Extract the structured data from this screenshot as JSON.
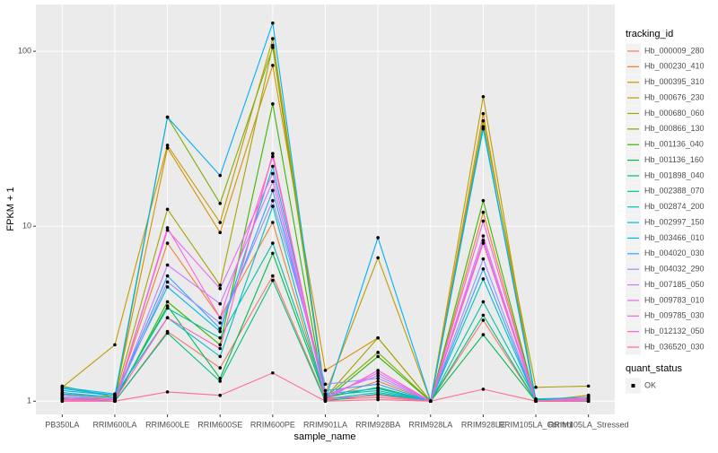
{
  "chart_data": {
    "type": "line",
    "x_label": "sample_name",
    "y_label": "FPKM + 1",
    "log_y": true,
    "grid": true,
    "legend_position": "right",
    "legend_title": "tracking_id",
    "categories": [
      "PB350LA",
      "RRIM600LA",
      "RRIM600LE",
      "RRIM600SE",
      "RRIM600PE",
      "RRIM901LA",
      "RRIM928BA",
      "RRIM928LA",
      "RRIM928LE",
      "RRIM105LA_Control",
      "RRIM105LA_Stressed"
    ],
    "ylim": [
      0.84,
      185
    ],
    "yticks": [
      1,
      10,
      100
    ],
    "point_color": "#000000",
    "status_legend": {
      "title": "quant_status",
      "labels": [
        "OK"
      ]
    },
    "series": [
      {
        "name": "Hb_000009_280",
        "color": "#F8766D",
        "values": [
          1.02,
          1.0,
          2.5,
          1.55,
          5.2,
          1.02,
          1.05,
          1.0,
          2.9,
          1.0,
          1.0
        ]
      },
      {
        "name": "Hb_000230_410",
        "color": "#EA8331",
        "values": [
          1.05,
          1.02,
          8.0,
          3.0,
          10.5,
          1.03,
          1.3,
          1.0,
          12,
          1.0,
          1.08
        ]
      },
      {
        "name": "Hb_000395_310",
        "color": "#D89000",
        "values": [
          1.1,
          1.05,
          28,
          9.2,
          83,
          1.5,
          2.3,
          1.0,
          44,
          1.0,
          1.05
        ]
      },
      {
        "name": "Hb_000676_230",
        "color": "#C09B00",
        "values": [
          1.2,
          2.1,
          29,
          10.5,
          118,
          1.1,
          6.6,
          1.0,
          55,
          1.0,
          1.08
        ]
      },
      {
        "name": "Hb_000680_060",
        "color": "#A3A500",
        "values": [
          1.22,
          1.05,
          12.5,
          4.6,
          108,
          1.05,
          2.3,
          1.0,
          40,
          1.2,
          1.22
        ]
      },
      {
        "name": "Hb_000866_130",
        "color": "#7CAE00",
        "values": [
          1.08,
          1.03,
          42,
          13.5,
          105,
          1.05,
          1.9,
          1.0,
          37,
          1.02,
          1.02
        ]
      },
      {
        "name": "Hb_001136_040",
        "color": "#39B600",
        "values": [
          1.03,
          1.0,
          3.7,
          2.1,
          50,
          1.02,
          1.8,
          1.0,
          14,
          1.0,
          1.03
        ]
      },
      {
        "name": "Hb_001136_160",
        "color": "#00BB4E",
        "values": [
          1.05,
          1.02,
          3.5,
          1.35,
          7.0,
          1.05,
          1.2,
          1.0,
          2.4,
          1.0,
          1.0
        ]
      },
      {
        "name": "Hb_001898_040",
        "color": "#00BF7D",
        "values": [
          1.03,
          1.0,
          2.45,
          1.3,
          4.9,
          1.0,
          1.1,
          1.0,
          3.1,
          1.0,
          1.0
        ]
      },
      {
        "name": "Hb_002388_070",
        "color": "#00C1A3",
        "values": [
          1.1,
          1.05,
          3.4,
          2.3,
          8.0,
          1.08,
          1.15,
          1.0,
          3.7,
          1.02,
          1.05
        ]
      },
      {
        "name": "Hb_002874_200",
        "color": "#00BFC4",
        "values": [
          1.15,
          1.08,
          3.0,
          1.8,
          13,
          1.03,
          1.12,
          1.0,
          5.0,
          1.0,
          1.02
        ]
      },
      {
        "name": "Hb_002997_150",
        "color": "#00BAE0",
        "values": [
          1.2,
          1.1,
          4.5,
          2.5,
          22,
          1.1,
          1.18,
          1.0,
          36,
          1.03,
          1.05
        ]
      },
      {
        "name": "Hb_003466_010",
        "color": "#00B0F6",
        "values": [
          1.18,
          1.08,
          42,
          19.5,
          145,
          1.02,
          8.6,
          1.0,
          37,
          1.0,
          1.0
        ]
      },
      {
        "name": "Hb_004020_030",
        "color": "#35A2FF",
        "values": [
          1.12,
          1.05,
          5.2,
          2.6,
          16,
          1.15,
          1.25,
          1.0,
          5.7,
          1.0,
          1.03
        ]
      },
      {
        "name": "Hb_004032_290",
        "color": "#9590FF",
        "values": [
          1.05,
          1.03,
          4.8,
          2.8,
          14,
          1.25,
          1.35,
          1.0,
          6.5,
          1.0,
          1.02
        ]
      },
      {
        "name": "Hb_007185_050",
        "color": "#C77CFF",
        "values": [
          1.08,
          1.02,
          6.0,
          3.6,
          18,
          1.08,
          1.4,
          1.0,
          8.3,
          1.0,
          1.05
        ]
      },
      {
        "name": "Hb_009783_010",
        "color": "#E76BF3",
        "values": [
          1.02,
          1.0,
          9.5,
          4.4,
          20,
          1.05,
          1.45,
          1.0,
          8.8,
          1.0,
          1.0
        ]
      },
      {
        "name": "Hb_009785_030",
        "color": "#FA62DB",
        "values": [
          1.0,
          1.0,
          9.8,
          3.0,
          25,
          1.02,
          1.5,
          1.0,
          10.7,
          1.0,
          1.0
        ]
      },
      {
        "name": "Hb_012132_050",
        "color": "#FF62BC",
        "values": [
          1.03,
          1.02,
          3.0,
          2.0,
          26,
          1.03,
          1.08,
          1.0,
          8.0,
          1.0,
          1.03
        ]
      },
      {
        "name": "Hb_036520_030",
        "color": "#FF6C91",
        "values": [
          1.0,
          1.0,
          1.13,
          1.08,
          1.45,
          1.0,
          1.02,
          1.0,
          1.17,
          1.0,
          1.0
        ]
      }
    ]
  }
}
